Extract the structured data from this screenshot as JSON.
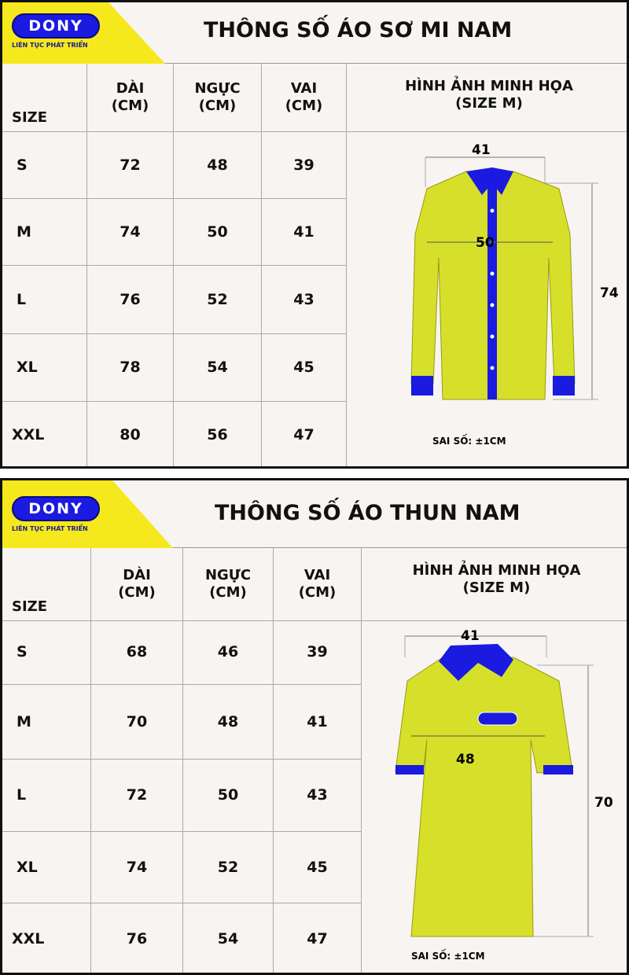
{
  "brand": {
    "logo": "DONY",
    "slogan": "LIÊN TỤC PHÁT TRIỂN",
    "yellow": "#f5e81c",
    "blue": "#1a1ae0"
  },
  "columns": {
    "size": "SIZE",
    "length": "DÀI\n(CM)",
    "chest": "NGỰC\n(CM)",
    "shoulder": "VAI\n(CM)",
    "image": "HÌNH ẢNH MINH HỌA\n(SIZE M)"
  },
  "shirt": {
    "title": "THÔNG SỐ ÁO SƠ MI NAM",
    "rows": [
      [
        "S",
        "72",
        "48",
        "39"
      ],
      [
        "M",
        "74",
        "50",
        "41"
      ],
      [
        "L",
        "76",
        "52",
        "43"
      ],
      [
        "XL",
        "78",
        "54",
        "45"
      ],
      [
        "XXL",
        "80",
        "56",
        "47"
      ]
    ],
    "dims": {
      "shoulder": "41",
      "chest": "50",
      "length": "74"
    },
    "tolerance": "SAI SỐ: ±1CM"
  },
  "tshirt": {
    "title": "THÔNG SỐ ÁO THUN NAM",
    "rows": [
      [
        "S",
        "68",
        "46",
        "39"
      ],
      [
        "M",
        "70",
        "48",
        "41"
      ],
      [
        "L",
        "72",
        "50",
        "43"
      ],
      [
        "XL",
        "74",
        "52",
        "45"
      ],
      [
        "XXL",
        "76",
        "54",
        "47"
      ]
    ],
    "dims": {
      "shoulder": "41",
      "chest": "48",
      "length": "70"
    },
    "tolerance": "SAI SỐ: ±1CM"
  }
}
